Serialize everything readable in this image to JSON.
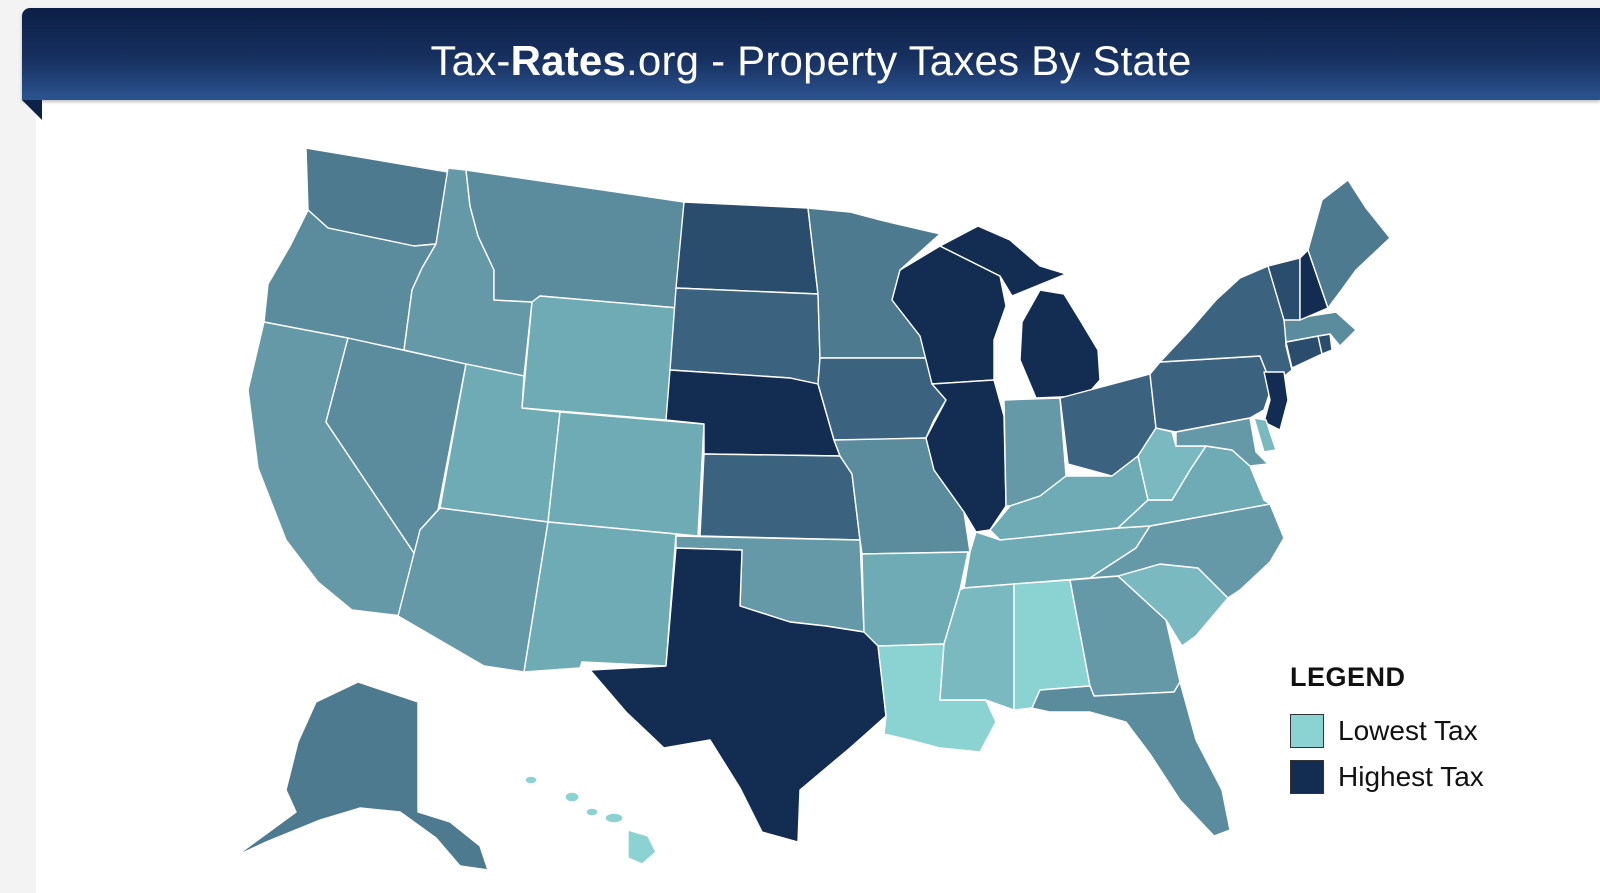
{
  "header": {
    "title_prefix": "Tax-",
    "title_bold": "Rates",
    "title_suffix": ".org - Property Taxes By State"
  },
  "map": {
    "region": "United States",
    "tiers": {
      "t1": "#8bd3d3",
      "t2": "#7ab9bf",
      "t3": "#6eabb4",
      "t4": "#6599a8",
      "t5": "#5a8c9d",
      "t6": "#4d7a8f",
      "t7": "#3b6380",
      "t8": "#2a4d6e",
      "t9": "#132c52"
    },
    "states": [
      {
        "code": "WA",
        "tier": "t6"
      },
      {
        "code": "OR",
        "tier": "t5"
      },
      {
        "code": "CA",
        "tier": "t4"
      },
      {
        "code": "NV",
        "tier": "t5"
      },
      {
        "code": "ID",
        "tier": "t4"
      },
      {
        "code": "MT",
        "tier": "t5"
      },
      {
        "code": "WY",
        "tier": "t3"
      },
      {
        "code": "UT",
        "tier": "t3"
      },
      {
        "code": "AZ",
        "tier": "t4"
      },
      {
        "code": "CO",
        "tier": "t3"
      },
      {
        "code": "NM",
        "tier": "t3"
      },
      {
        "code": "ND",
        "tier": "t8"
      },
      {
        "code": "SD",
        "tier": "t7"
      },
      {
        "code": "NE",
        "tier": "t9"
      },
      {
        "code": "KS",
        "tier": "t7"
      },
      {
        "code": "OK",
        "tier": "t4"
      },
      {
        "code": "TX",
        "tier": "t9"
      },
      {
        "code": "MN",
        "tier": "t6"
      },
      {
        "code": "IA",
        "tier": "t7"
      },
      {
        "code": "MO",
        "tier": "t5"
      },
      {
        "code": "AR",
        "tier": "t3"
      },
      {
        "code": "LA",
        "tier": "t1"
      },
      {
        "code": "WI",
        "tier": "t9"
      },
      {
        "code": "IL",
        "tier": "t9"
      },
      {
        "code": "MI",
        "tier": "t9"
      },
      {
        "code": "IN",
        "tier": "t4"
      },
      {
        "code": "OH",
        "tier": "t7"
      },
      {
        "code": "KY",
        "tier": "t3"
      },
      {
        "code": "TN",
        "tier": "t3"
      },
      {
        "code": "MS",
        "tier": "t2"
      },
      {
        "code": "AL",
        "tier": "t1"
      },
      {
        "code": "GA",
        "tier": "t4"
      },
      {
        "code": "FL",
        "tier": "t5"
      },
      {
        "code": "SC",
        "tier": "t2"
      },
      {
        "code": "NC",
        "tier": "t4"
      },
      {
        "code": "VA",
        "tier": "t3"
      },
      {
        "code": "WV",
        "tier": "t2"
      },
      {
        "code": "PA",
        "tier": "t7"
      },
      {
        "code": "NY",
        "tier": "t7"
      },
      {
        "code": "NJ",
        "tier": "t9"
      },
      {
        "code": "DE",
        "tier": "t2"
      },
      {
        "code": "MD",
        "tier": "t4"
      },
      {
        "code": "CT",
        "tier": "t8"
      },
      {
        "code": "RI",
        "tier": "t8"
      },
      {
        "code": "MA",
        "tier": "t5"
      },
      {
        "code": "VT",
        "tier": "t8"
      },
      {
        "code": "NH",
        "tier": "t9"
      },
      {
        "code": "ME",
        "tier": "t6"
      },
      {
        "code": "AK",
        "tier": "t6"
      },
      {
        "code": "HI",
        "tier": "t1"
      }
    ]
  },
  "legend": {
    "title": "LEGEND",
    "items": [
      {
        "label": "Lowest Tax",
        "color": "#8bd3d3"
      },
      {
        "label": "Highest Tax",
        "color": "#132c52"
      }
    ]
  }
}
